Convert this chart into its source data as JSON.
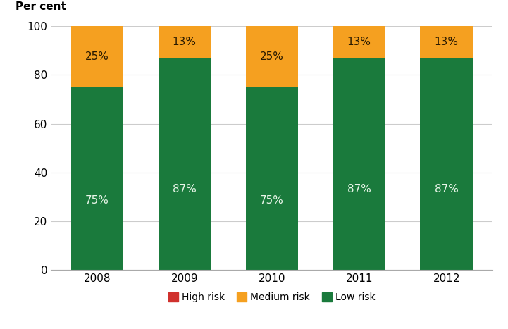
{
  "years": [
    "2008",
    "2009",
    "2010",
    "2011",
    "2012"
  ],
  "low_risk": [
    75,
    87,
    75,
    87,
    87
  ],
  "medium_risk": [
    25,
    13,
    25,
    13,
    13
  ],
  "high_risk": [
    0,
    0,
    0,
    0,
    0
  ],
  "low_color": "#1a7a3c",
  "medium_color": "#f5a020",
  "high_color": "#d0312d",
  "ylabel": "Per cent",
  "ylim": [
    0,
    100
  ],
  "yticks": [
    0,
    20,
    40,
    60,
    80,
    100
  ],
  "low_labels": [
    "75%",
    "87%",
    "75%",
    "87%",
    "87%"
  ],
  "medium_labels": [
    "25%",
    "13%",
    "25%",
    "13%",
    "13%"
  ],
  "label_color_low": "#e8f5e8",
  "label_color_medium": "#2a1a00",
  "legend_labels": [
    "High risk",
    "Medium risk",
    "Low risk"
  ],
  "bar_width": 0.6,
  "figsize": [
    7.21,
    4.67
  ],
  "dpi": 100
}
